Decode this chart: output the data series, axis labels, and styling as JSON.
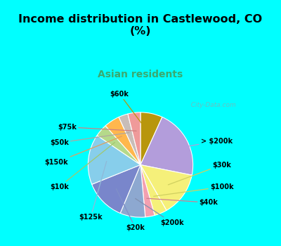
{
  "title": "Income distribution in Castlewood, CO\n(%)",
  "subtitle": "Asian residents",
  "background_top": "#00FFFF",
  "background_chart_color": "#d8f0e4",
  "labels": [
    "$60k",
    "> $200k",
    "$30k",
    "$100k",
    "$40k",
    "$200k",
    "$20k",
    "$125k",
    "$10k",
    "$150k",
    "$50k",
    "$75k"
  ],
  "values": [
    7,
    22,
    14,
    4,
    3,
    8,
    13,
    16,
    4,
    5,
    3,
    4
  ],
  "colors": [
    "#b8960c",
    "#b39ddb",
    "#f5f07a",
    "#f5f07a",
    "#f4a0b0",
    "#8da8d0",
    "#7986cb",
    "#87CEEB",
    "#b5d98a",
    "#ffb74d",
    "#c8bdb8",
    "#ef9a9a"
  ],
  "watermark": "  City-Data.com",
  "label_colors": [
    "#b8960c",
    "#9e9e9e",
    "#c8c840",
    "#c8c840",
    "#d87080",
    "#7090b8",
    "#5060a0",
    "#6090c0",
    "#90b860",
    "#d09040",
    "#a09090",
    "#d07070"
  ]
}
